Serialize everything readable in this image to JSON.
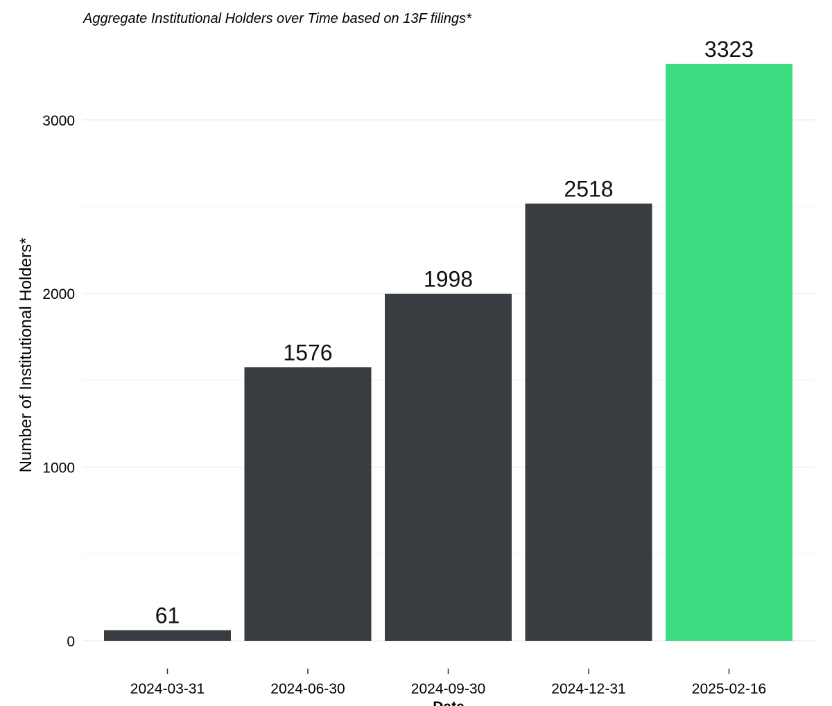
{
  "chart_data": {
    "type": "bar",
    "subtitle": "Aggregate Institutional Holders over Time based on 13F filings*",
    "xlabel": "Date",
    "ylabel": "Number of Institutional Holders*",
    "categories": [
      "2024-03-31",
      "2024-06-30",
      "2024-09-30",
      "2024-12-31",
      "2025-02-16"
    ],
    "values": [
      61,
      1576,
      1998,
      2518,
      3323
    ],
    "data_labels": [
      "61",
      "1576",
      "1998",
      "2518",
      "3323"
    ],
    "yticks": [
      0,
      1000,
      2000,
      3000
    ],
    "ytick_labels": [
      "0",
      "1000",
      "2000",
      "3000"
    ],
    "minor_gridlines": [
      500,
      1500,
      2500
    ],
    "ylim": [
      0,
      3323
    ],
    "grid": true,
    "legend": "none",
    "colors": {
      "default_bar": "#393d41",
      "highlight_bar": "#3ddc80"
    },
    "highlight_index": 4
  }
}
